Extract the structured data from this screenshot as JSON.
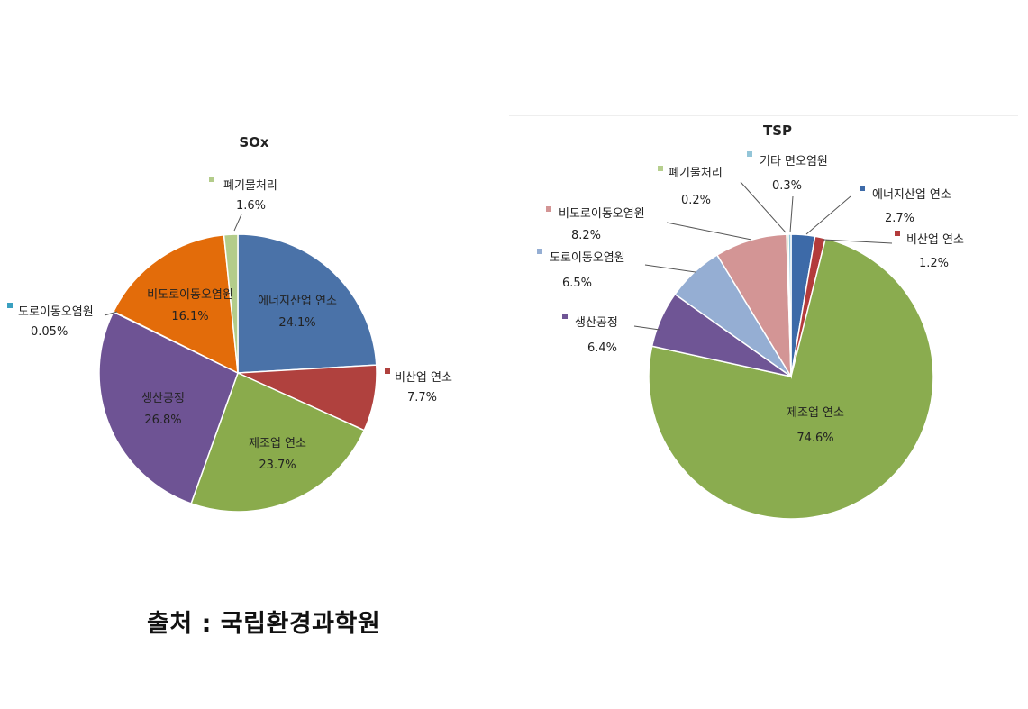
{
  "source_note": "출처 : 국립환경과학원",
  "chart_data": [
    {
      "type": "pie",
      "title": "SOx",
      "slices": [
        {
          "label": "에너지산업 연소",
          "value": 24.1,
          "value_text": "24.1%",
          "color": "#4a72a8"
        },
        {
          "label": "비산업 연소",
          "value": 7.7,
          "value_text": "7.7%",
          "color": "#b0413e"
        },
        {
          "label": "제조업 연소",
          "value": 23.7,
          "value_text": "23.7%",
          "color": "#8aab4c"
        },
        {
          "label": "생산공정",
          "value": 26.8,
          "value_text": "26.8%",
          "color": "#6e5394"
        },
        {
          "label": "도로이동오염원",
          "value": 0.05,
          "value_text": "0.05%",
          "color": "#3aa0c0"
        },
        {
          "label": "비도로이동오염원",
          "value": 16.1,
          "value_text": "16.1%",
          "color": "#e36c0a"
        },
        {
          "label": "폐기물처리",
          "value": 1.6,
          "value_text": "1.6%",
          "color": "#b3cc8a"
        }
      ]
    },
    {
      "type": "pie",
      "title": "TSP",
      "slices": [
        {
          "label": "에너지산업 연소",
          "value": 2.7,
          "value_text": "2.7%",
          "color": "#3d6aa8"
        },
        {
          "label": "비산업 연소",
          "value": 1.2,
          "value_text": "1.2%",
          "color": "#b33b3b"
        },
        {
          "label": "제조업 연소",
          "value": 74.6,
          "value_text": "74.6%",
          "color": "#8aac4f"
        },
        {
          "label": "생산공정",
          "value": 6.4,
          "value_text": "6.4%",
          "color": "#6f5595"
        },
        {
          "label": "도로이동오염원",
          "value": 6.5,
          "value_text": "6.5%",
          "color": "#95aed3"
        },
        {
          "label": "비도로이동오염원",
          "value": 8.2,
          "value_text": "8.2%",
          "color": "#d39595"
        },
        {
          "label": "폐기물처리",
          "value": 0.2,
          "value_text": "0.2%",
          "color": "#b6cf8e"
        },
        {
          "label": "기타 면오염원",
          "value": 0.3,
          "value_text": "0.3%",
          "color": "#93c5d8"
        }
      ]
    }
  ]
}
